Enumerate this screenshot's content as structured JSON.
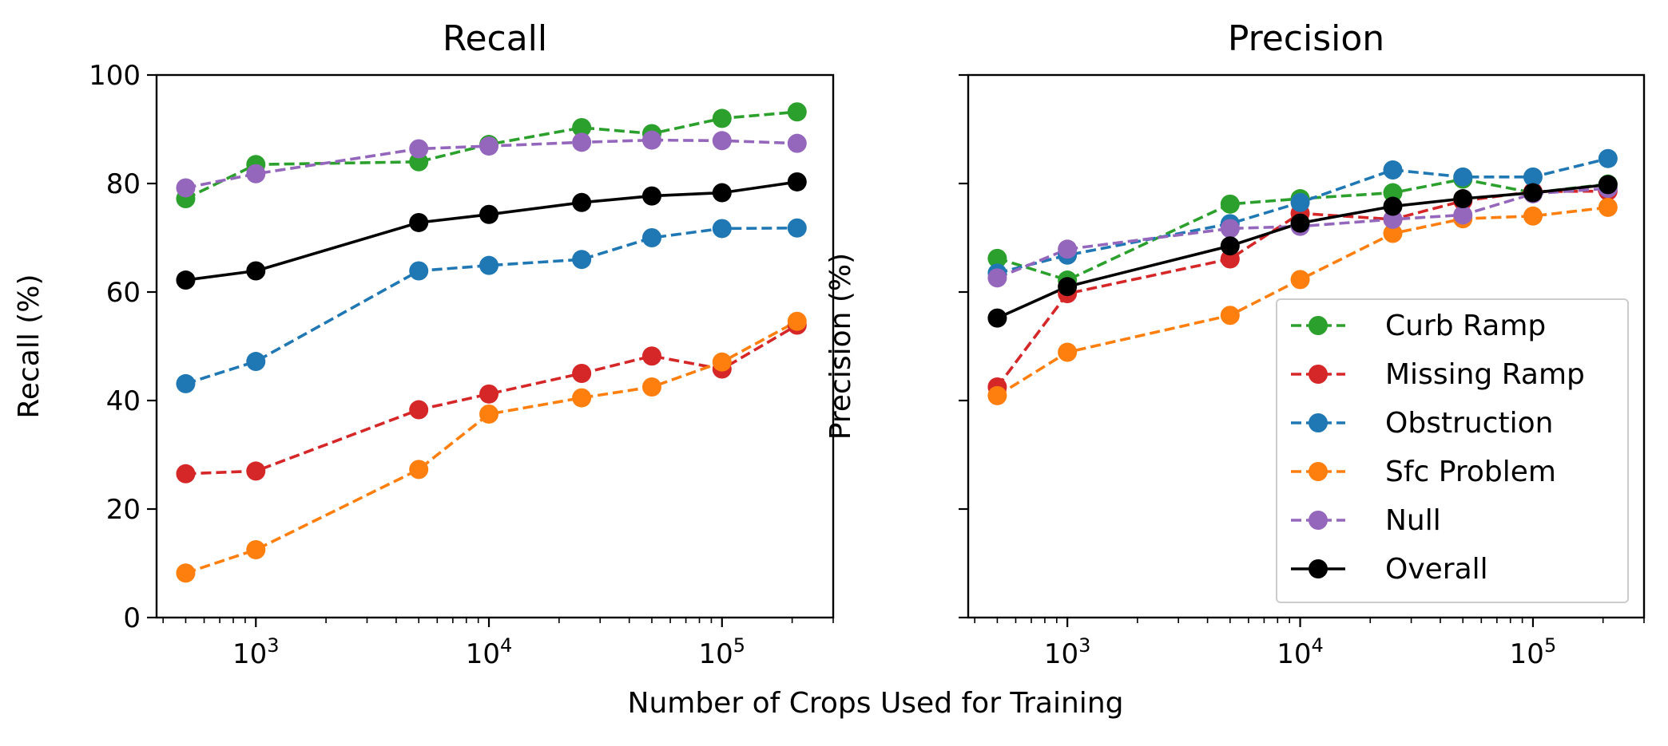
{
  "shared_xlabel": "Number of Crops Used for Training",
  "chart_data": [
    {
      "type": "line",
      "title": "Recall",
      "xlabel": "",
      "ylabel": "Recall (%)",
      "xscale": "log",
      "xlim": [
        375,
        300000
      ],
      "ylim": [
        0,
        100
      ],
      "yticks": [
        0,
        20,
        40,
        60,
        80,
        100
      ],
      "xticks": [
        {
          "value": 1000,
          "base": "10",
          "exp": "3"
        },
        {
          "value": 10000,
          "base": "10",
          "exp": "4"
        },
        {
          "value": 100000,
          "base": "10",
          "exp": "5"
        }
      ],
      "grid": false,
      "x": [
        500,
        1000,
        5000,
        10000,
        25000,
        50000,
        100000,
        210000
      ],
      "series": [
        {
          "name": "Curb Ramp",
          "color": "#2ca02c",
          "dash": true,
          "values": [
            77.2,
            83.5,
            84.0,
            87.2,
            90.3,
            89.2,
            92.0,
            93.2
          ]
        },
        {
          "name": "Missing Ramp",
          "color": "#d62728",
          "dash": true,
          "values": [
            26.5,
            27.0,
            38.3,
            41.2,
            45.0,
            48.2,
            45.8,
            53.9
          ]
        },
        {
          "name": "Obstruction",
          "color": "#1f77b4",
          "dash": true,
          "values": [
            43.1,
            47.2,
            63.9,
            64.9,
            66.0,
            70.0,
            71.7,
            71.8
          ]
        },
        {
          "name": "Sfc Problem",
          "color": "#ff7f0e",
          "dash": true,
          "values": [
            8.2,
            12.5,
            27.3,
            37.5,
            40.5,
            42.5,
            47.1,
            54.6
          ]
        },
        {
          "name": "Null",
          "color": "#9467bd",
          "dash": true,
          "values": [
            79.2,
            81.8,
            86.4,
            86.9,
            87.6,
            88.0,
            87.9,
            87.4
          ]
        },
        {
          "name": "Overall",
          "color": "#000000",
          "dash": false,
          "values": [
            62.2,
            63.9,
            72.8,
            74.3,
            76.5,
            77.7,
            78.3,
            80.3
          ]
        }
      ]
    },
    {
      "type": "line",
      "title": "Precision",
      "xlabel": "",
      "ylabel": "Precision (%)",
      "xscale": "log",
      "xlim": [
        375,
        300000
      ],
      "ylim": [
        0,
        100
      ],
      "xticks": [
        {
          "value": 1000,
          "base": "10",
          "exp": "3"
        },
        {
          "value": 10000,
          "base": "10",
          "exp": "4"
        },
        {
          "value": 100000,
          "base": "10",
          "exp": "5"
        }
      ],
      "grid": false,
      "legend_position": "bottom-right",
      "x": [
        500,
        1000,
        5000,
        10000,
        25000,
        50000,
        100000,
        210000
      ],
      "series": [
        {
          "name": "Curb Ramp",
          "color": "#2ca02c",
          "dash": true,
          "values": [
            66.2,
            62.2,
            76.2,
            77.2,
            78.3,
            80.8,
            78.3,
            79.9
          ]
        },
        {
          "name": "Missing Ramp",
          "color": "#d62728",
          "dash": true,
          "values": [
            42.5,
            59.7,
            66.1,
            74.5,
            73.4,
            76.8,
            78.5,
            78.6
          ]
        },
        {
          "name": "Obstruction",
          "color": "#1f77b4",
          "dash": true,
          "values": [
            63.5,
            66.8,
            72.6,
            76.5,
            82.5,
            81.2,
            81.2,
            84.6
          ]
        },
        {
          "name": "Sfc Problem",
          "color": "#ff7f0e",
          "dash": true,
          "values": [
            40.9,
            48.9,
            55.7,
            62.3,
            70.8,
            73.5,
            74.0,
            75.6
          ]
        },
        {
          "name": "Null",
          "color": "#9467bd",
          "dash": true,
          "values": [
            62.6,
            67.9,
            71.7,
            72.1,
            73.4,
            74.2,
            78.1,
            79.1
          ]
        },
        {
          "name": "Overall",
          "color": "#000000",
          "dash": false,
          "values": [
            55.2,
            61.0,
            68.5,
            72.7,
            75.8,
            77.2,
            78.3,
            79.8
          ]
        }
      ]
    }
  ]
}
